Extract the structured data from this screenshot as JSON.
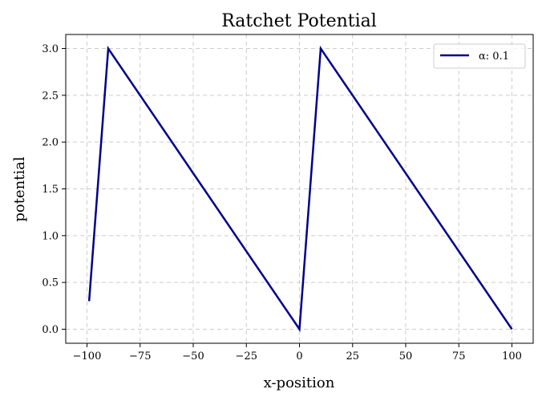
{
  "chart_data": {
    "type": "line",
    "title": "Ratchet Potential",
    "xlabel": "x-position",
    "ylabel": "potential",
    "xlim": [
      -110,
      110
    ],
    "ylim": [
      -0.15,
      3.15
    ],
    "xticks": [
      -100,
      -75,
      -50,
      -25,
      0,
      25,
      50,
      75,
      100
    ],
    "xtick_labels": [
      "−100",
      "−75",
      "−50",
      "−25",
      "0",
      "25",
      "50",
      "75",
      "100"
    ],
    "yticks": [
      0.0,
      0.5,
      1.0,
      1.5,
      2.0,
      2.5,
      3.0
    ],
    "ytick_labels": [
      "0.0",
      "0.5",
      "1.0",
      "1.5",
      "2.0",
      "2.5",
      "3.0"
    ],
    "grid": true,
    "legend_position": "top-right",
    "series": [
      {
        "name": "α: 0.1",
        "color": "#00008b",
        "x": [
          -99,
          -90,
          0,
          10,
          100
        ],
        "y": [
          0.3,
          3.0,
          0.0,
          3.0,
          0.0
        ]
      }
    ]
  }
}
